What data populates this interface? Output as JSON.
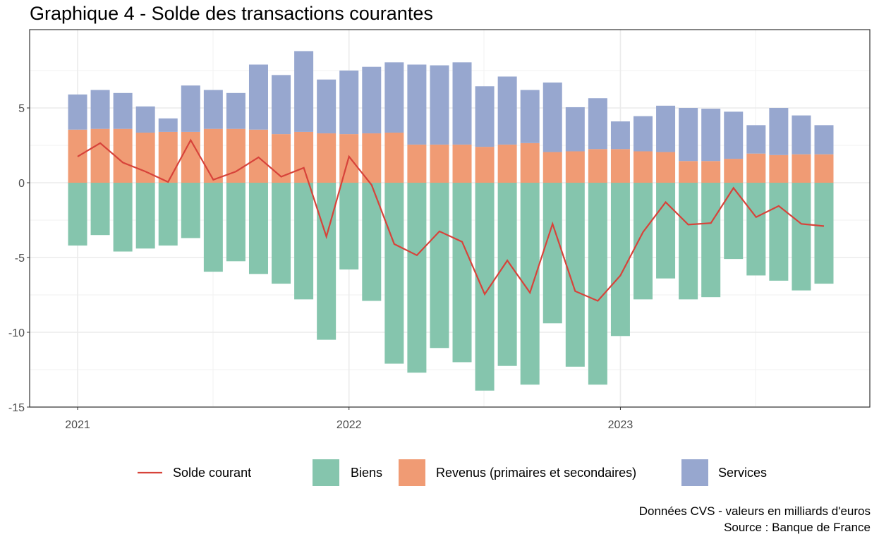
{
  "chart_data": {
    "type": "bar",
    "title": "Graphique 4 - Solde des transactions courantes",
    "xlabel": "",
    "ylabel": "",
    "ylim": [
      -15,
      9.3
    ],
    "y_ticks": [
      5,
      0,
      -5,
      -10,
      -15
    ],
    "x_tick_labels": [
      "2021",
      "2022",
      "2023"
    ],
    "grid": true,
    "legend_position": "bottom",
    "x": [
      "2021-01",
      "2021-02",
      "2021-03",
      "2021-04",
      "2021-05",
      "2021-06",
      "2021-07",
      "2021-08",
      "2021-09",
      "2021-10",
      "2021-11",
      "2021-12",
      "2022-01",
      "2022-02",
      "2022-03",
      "2022-04",
      "2022-05",
      "2022-06",
      "2022-07",
      "2022-08",
      "2022-09",
      "2022-10",
      "2022-11",
      "2022-12",
      "2023-01",
      "2023-02",
      "2023-03",
      "2023-04",
      "2023-05",
      "2023-06",
      "2023-07",
      "2023-08",
      "2023-09",
      "2023-10"
    ],
    "series": [
      {
        "name": "Biens",
        "type": "bar",
        "color": "#85c5ad",
        "values": [
          -4.2,
          -3.5,
          -4.6,
          -4.4,
          -4.2,
          -3.7,
          -5.95,
          -5.25,
          -6.1,
          -6.75,
          -7.8,
          -10.5,
          -5.8,
          -7.9,
          -12.1,
          -12.7,
          -11.05,
          -12.0,
          -13.9,
          -12.25,
          -13.5,
          -9.4,
          -12.3,
          -13.5,
          -10.25,
          -7.8,
          -6.4,
          -7.8,
          -7.65,
          -5.1,
          -6.2,
          -6.55,
          -7.2,
          -6.75
        ]
      },
      {
        "name": "Revenus (primaires et secondaires)",
        "type": "bar",
        "color": "#f09b74",
        "values": [
          3.55,
          3.6,
          3.6,
          3.35,
          3.4,
          3.4,
          3.6,
          3.6,
          3.55,
          3.25,
          3.4,
          3.3,
          3.25,
          3.3,
          3.35,
          2.55,
          2.55,
          2.55,
          2.4,
          2.55,
          2.65,
          2.05,
          2.1,
          2.25,
          2.25,
          2.1,
          2.05,
          1.45,
          1.45,
          1.6,
          1.95,
          1.85,
          1.9,
          1.9
        ]
      },
      {
        "name": "Services",
        "type": "bar",
        "color": "#97a7cf",
        "values": [
          2.35,
          2.6,
          2.4,
          1.75,
          0.9,
          3.1,
          2.6,
          2.4,
          4.35,
          3.95,
          5.4,
          3.6,
          4.25,
          4.45,
          4.7,
          5.35,
          5.3,
          5.5,
          4.05,
          4.55,
          3.55,
          4.65,
          2.95,
          3.4,
          1.85,
          2.35,
          3.1,
          3.55,
          3.5,
          3.15,
          1.9,
          3.15,
          2.6,
          1.95
        ]
      },
      {
        "name": "Solde courant",
        "type": "line",
        "color": "#d7433a",
        "values": [
          1.75,
          2.65,
          1.35,
          0.75,
          0.05,
          2.85,
          0.2,
          0.75,
          1.7,
          0.4,
          1.0,
          -3.6,
          1.75,
          -0.15,
          -4.1,
          -4.85,
          -3.25,
          -3.95,
          -7.45,
          -5.2,
          -7.35,
          -2.75,
          -7.25,
          -7.9,
          -6.2,
          -3.3,
          -1.3,
          -2.8,
          -2.7,
          -0.35,
          -2.3,
          -1.55,
          -2.75,
          -2.9
        ]
      }
    ],
    "legend": [
      "Solde courant",
      "Biens",
      "Revenus (primaires et secondaires)",
      "Services"
    ],
    "caption": [
      "Données CVS -  valeurs en milliards d'euros",
      "Source : Banque de France"
    ]
  }
}
